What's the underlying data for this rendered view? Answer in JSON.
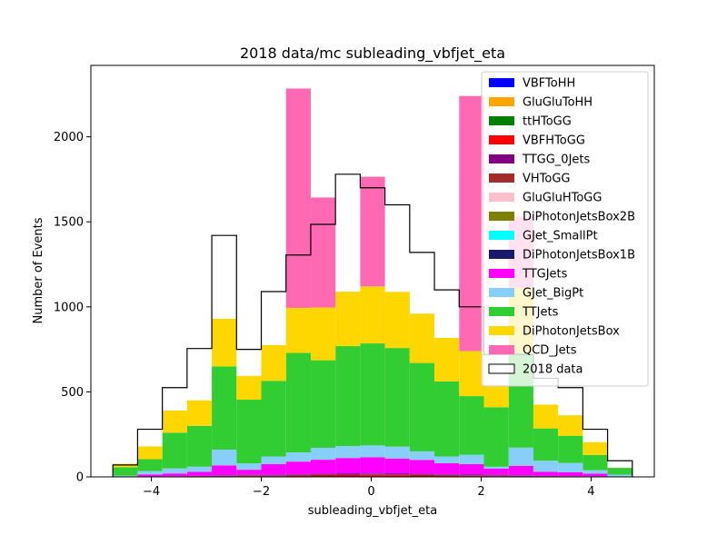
{
  "chart_data": {
    "type": "bar",
    "title": "2018 data/mc subleading_vbfjet_eta",
    "xlabel": "subleading_vbfjet_eta",
    "ylabel": "Number of Events",
    "xlim": [
      -5.1,
      5.15
    ],
    "ylim": [
      0,
      2420
    ],
    "xticks": [
      -4,
      -2,
      0,
      2,
      4
    ],
    "yticks": [
      0,
      500,
      1000,
      1500,
      2000
    ],
    "bin_edges": [
      -4.7,
      -4.25,
      -3.8,
      -3.35,
      -2.9,
      -2.45,
      -2.0,
      -1.55,
      -1.1,
      -0.65,
      -0.2,
      0.25,
      0.7,
      1.15,
      1.6,
      2.05,
      2.5,
      2.95,
      3.4,
      3.85,
      4.3,
      4.75
    ],
    "legend_position": "upper right",
    "stacked_series": [
      {
        "name": "VBFToHH",
        "color": "#0000ff",
        "values": [
          0,
          0,
          0,
          0,
          0,
          0,
          0,
          0,
          0,
          0,
          0,
          0,
          0,
          0,
          0,
          0,
          0,
          0,
          0,
          0,
          0
        ]
      },
      {
        "name": "GluGluToHH",
        "color": "#ffa500",
        "values": [
          0,
          0,
          0,
          0,
          0,
          0,
          0,
          0,
          0,
          0,
          0,
          0,
          0,
          0,
          0,
          0,
          0,
          0,
          0,
          0,
          0
        ]
      },
      {
        "name": "ttHToGG",
        "color": "#008000",
        "values": [
          0,
          0,
          0,
          0,
          0,
          0,
          0,
          0,
          0,
          0,
          0,
          0,
          0,
          0,
          0,
          0,
          0,
          0,
          0,
          0,
          0
        ]
      },
      {
        "name": "VBFHToGG",
        "color": "#ff0000",
        "values": [
          0,
          1,
          1,
          2,
          3,
          5,
          4,
          6,
          8,
          8,
          9,
          9,
          8,
          6,
          5,
          4,
          3,
          2,
          1,
          1,
          0
        ]
      },
      {
        "name": "TTGG_0Jets",
        "color": "#800080",
        "values": [
          0,
          1,
          1,
          1,
          2,
          2,
          2,
          2,
          3,
          3,
          3,
          3,
          3,
          2,
          2,
          2,
          2,
          1,
          1,
          1,
          0
        ]
      },
      {
        "name": "VHToGG",
        "color": "#a52a2a",
        "values": [
          0,
          1,
          1,
          2,
          2,
          3,
          3,
          4,
          4,
          5,
          5,
          4,
          4,
          4,
          3,
          3,
          2,
          2,
          1,
          1,
          0
        ]
      },
      {
        "name": "GluGluHToGG",
        "color": "#ffc0cb",
        "values": [
          0,
          0,
          0,
          0,
          0,
          0,
          0,
          0,
          0,
          0,
          0,
          0,
          0,
          0,
          0,
          0,
          0,
          0,
          0,
          0,
          0
        ]
      },
      {
        "name": "DiPhotonJetsBox2B",
        "color": "#808000",
        "values": [
          0,
          0,
          0,
          0,
          0,
          0,
          0,
          0,
          0,
          0,
          0,
          0,
          0,
          0,
          0,
          0,
          0,
          0,
          0,
          0,
          0
        ]
      },
      {
        "name": "GJet_SmallPt",
        "color": "#00ffff",
        "values": [
          0,
          0,
          0,
          0,
          0,
          0,
          0,
          0,
          0,
          0,
          0,
          0,
          0,
          0,
          0,
          0,
          0,
          0,
          0,
          0,
          0
        ]
      },
      {
        "name": "DiPhotonJetsBox1B",
        "color": "#191970",
        "values": [
          0,
          0,
          1,
          1,
          2,
          2,
          2,
          3,
          3,
          3,
          3,
          3,
          3,
          3,
          3,
          2,
          2,
          1,
          1,
          1,
          0
        ]
      },
      {
        "name": "TTGJets",
        "color": "#ff00ff",
        "values": [
          2,
          11,
          16,
          24,
          58,
          30,
          64,
          75,
          83,
          92,
          95,
          89,
          82,
          65,
          62,
          37,
          56,
          24,
          23,
          15,
          3
        ]
      },
      {
        "name": "GJet_BigPt",
        "color": "#87cefa",
        "values": [
          5,
          20,
          30,
          30,
          93,
          37,
          45,
          54,
          70,
          70,
          70,
          70,
          50,
          40,
          55,
          12,
          107,
          65,
          55,
          20,
          10
        ]
      },
      {
        "name": "TTJets",
        "color": "#32cd32",
        "values": [
          50,
          70,
          210,
          240,
          490,
          375,
          445,
          585,
          515,
          588,
          600,
          580,
          520,
          442,
          345,
          350,
          555,
          190,
          160,
          90,
          40
        ]
      },
      {
        "name": "DiPhotonJetsBox",
        "color": "#ffd700",
        "values": [
          20,
          75,
          130,
          150,
          280,
          140,
          210,
          265,
          310,
          320,
          335,
          330,
          290,
          255,
          265,
          130,
          385,
          140,
          120,
          75,
          0
        ]
      },
      {
        "name": "QCD_Jets",
        "color": "#ff69b4",
        "values": [
          0,
          0,
          0,
          0,
          0,
          0,
          0,
          1290,
          647,
          0,
          645,
          0,
          0,
          0,
          1500,
          0,
          420,
          0,
          0,
          0,
          0
        ]
      }
    ],
    "data_series": {
      "name": "2018 data",
      "color": "#000000",
      "values": [
        70,
        280,
        525,
        755,
        1420,
        750,
        1090,
        1305,
        1485,
        1780,
        1700,
        1600,
        1320,
        1100,
        1000,
        720,
        720,
        580,
        525,
        280,
        95
      ]
    }
  }
}
